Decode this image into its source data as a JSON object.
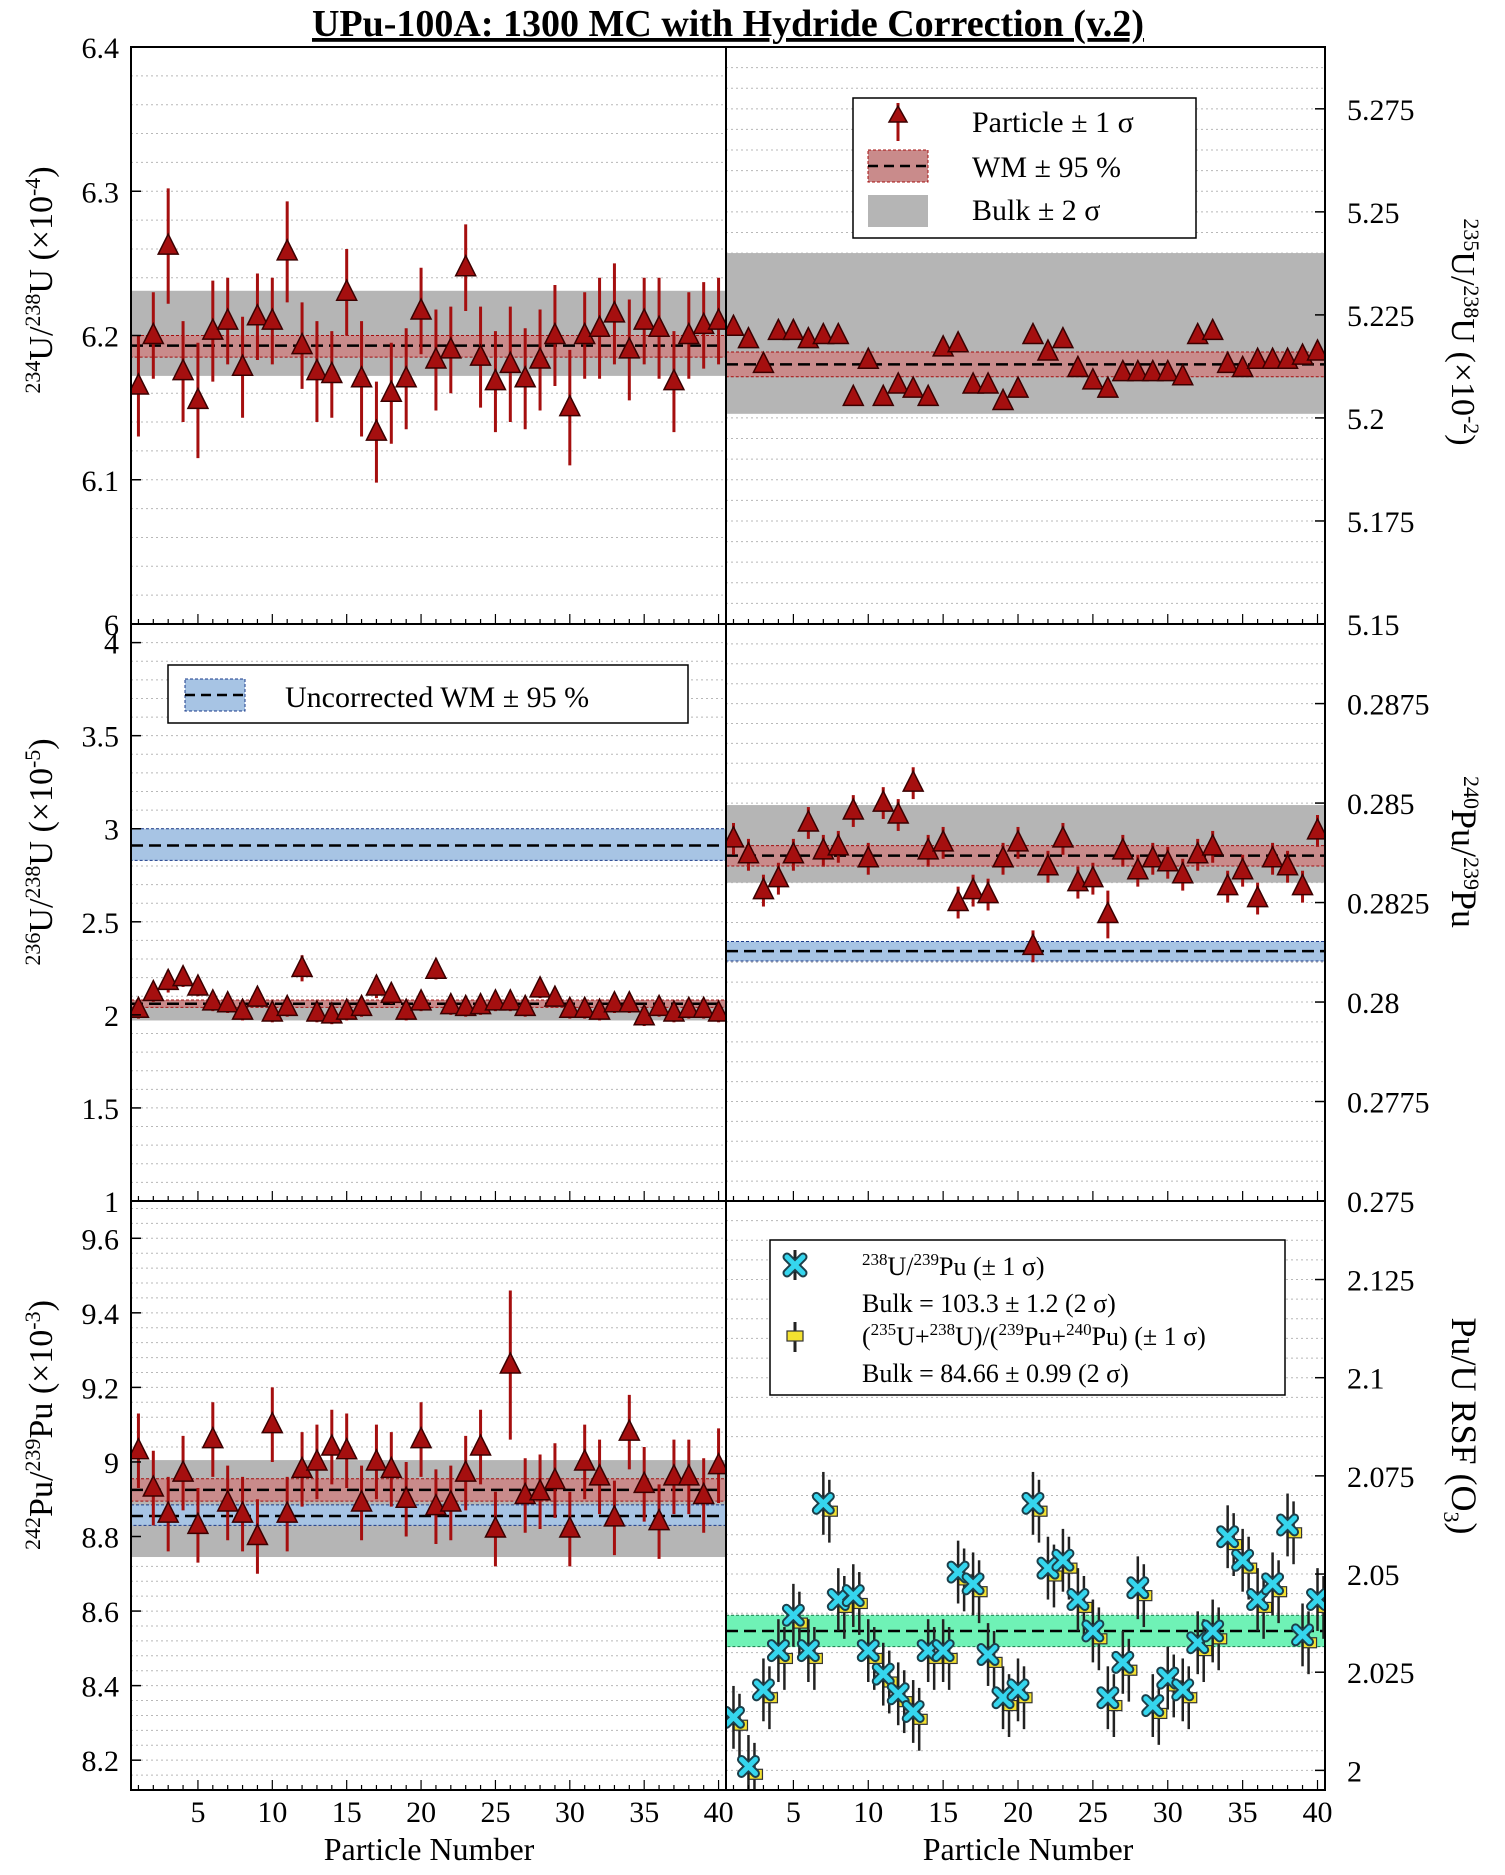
{
  "title": "UPu-100A: 1300 MC with Hydride Correction (v.2)",
  "xlabel": "Particle Number",
  "colors": {
    "marker_fill": "#a50f0f",
    "marker_edge": "#3a0000",
    "wm_band": "#c98b8b",
    "bulk_band": "#b5b5b5",
    "uncorr_band": "#a7c4e4",
    "rsf_band": "#6ff2b6",
    "cyan_marker": "#35d6ee",
    "yellow_marker": "#f4e230"
  },
  "legends": {
    "top": [
      "Particle ± 1 σ",
      "WM ± 95 %",
      "Bulk ± 2 σ"
    ],
    "uncorrected": "Uncorrected WM ± 95 %",
    "rsf": {
      "s1_label": "238U/239Pu (± 1 σ)",
      "s1_bulk": "Bulk = 103.3 ± 1.2 (2 σ)",
      "s2_label": "(235U+238U)/(239Pu+240Pu) (± 1 σ)",
      "s2_bulk": "Bulk = 84.66 ± 0.99 (2 σ)"
    }
  },
  "chart_data": [
    {
      "id": "u234",
      "type": "scatter",
      "ylabel": "234U/238U (×10-4)",
      "ylim": [
        6.0,
        6.4
      ],
      "yticks": [
        "6",
        "6.1",
        "6.2",
        "6.3",
        "6.4"
      ],
      "tick_values": [
        6.0,
        6.1,
        6.2,
        6.3,
        6.4
      ],
      "xlim": [
        0.5,
        40.5
      ],
      "xticks": [
        5,
        10,
        15,
        20,
        25,
        30,
        35,
        40
      ],
      "wm": {
        "value": 6.193,
        "low": 6.185,
        "high": 6.2
      },
      "bulk": {
        "low": 6.172,
        "high": 6.231
      },
      "x": [
        1,
        2,
        3,
        4,
        5,
        6,
        7,
        8,
        9,
        10,
        11,
        12,
        13,
        14,
        15,
        16,
        17,
        18,
        19,
        20,
        21,
        22,
        23,
        24,
        25,
        26,
        27,
        28,
        29,
        30,
        31,
        32,
        33,
        34,
        35,
        36,
        37,
        38,
        39,
        40
      ],
      "y": [
        6.165,
        6.2,
        6.262,
        6.175,
        6.155,
        6.203,
        6.21,
        6.178,
        6.213,
        6.21,
        6.258,
        6.193,
        6.175,
        6.173,
        6.23,
        6.17,
        6.133,
        6.16,
        6.17,
        6.217,
        6.183,
        6.19,
        6.247,
        6.185,
        6.168,
        6.18,
        6.17,
        6.183,
        6.2,
        6.15,
        6.2,
        6.205,
        6.215,
        6.19,
        6.21,
        6.205,
        6.168,
        6.2,
        6.207,
        6.21
      ],
      "err": [
        0.035,
        0.03,
        0.04,
        0.035,
        0.04,
        0.035,
        0.03,
        0.035,
        0.03,
        0.03,
        0.035,
        0.03,
        0.035,
        0.03,
        0.03,
        0.04,
        0.035,
        0.035,
        0.035,
        0.03,
        0.035,
        0.03,
        0.03,
        0.035,
        0.035,
        0.04,
        0.035,
        0.035,
        0.035,
        0.04,
        0.03,
        0.035,
        0.035,
        0.035,
        0.03,
        0.035,
        0.035,
        0.03,
        0.03,
        0.03
      ]
    },
    {
      "id": "u235",
      "type": "scatter",
      "ylabel": "235U/238U (×10-2)",
      "ylim": [
        5.15,
        5.29
      ],
      "yticks": [
        "5.15",
        "5.175",
        "5.2",
        "5.225",
        "5.25",
        "5.275"
      ],
      "tick_values": [
        5.15,
        5.175,
        5.2,
        5.225,
        5.25,
        5.275
      ],
      "xlim": [
        0.5,
        40.5
      ],
      "xticks": [
        5,
        10,
        15,
        20,
        25,
        30,
        35,
        40
      ],
      "wm": {
        "value": 5.213,
        "low": 5.21,
        "high": 5.216
      },
      "bulk": {
        "low": 5.201,
        "high": 5.24
      },
      "x": [
        1,
        2,
        3,
        4,
        5,
        6,
        7,
        8,
        9,
        10,
        11,
        12,
        13,
        14,
        15,
        16,
        17,
        18,
        19,
        20,
        21,
        22,
        23,
        24,
        25,
        26,
        27,
        28,
        29,
        30,
        31,
        32,
        33,
        34,
        35,
        36,
        37,
        38,
        39,
        40
      ],
      "y": [
        5.222,
        5.219,
        5.213,
        5.221,
        5.221,
        5.219,
        5.22,
        5.22,
        5.205,
        5.214,
        5.205,
        5.208,
        5.207,
        5.205,
        5.217,
        5.218,
        5.208,
        5.208,
        5.204,
        5.207,
        5.22,
        5.216,
        5.219,
        5.212,
        5.209,
        5.207,
        5.211,
        5.211,
        5.211,
        5.211,
        5.21,
        5.22,
        5.221,
        5.213,
        5.212,
        5.214,
        5.214,
        5.214,
        5.215,
        5.216
      ],
      "err": [
        0.002,
        0.002,
        0.002,
        0.002,
        0.002,
        0.002,
        0.002,
        0.002,
        0.002,
        0.002,
        0.002,
        0.002,
        0.002,
        0.002,
        0.002,
        0.002,
        0.002,
        0.002,
        0.002,
        0.002,
        0.002,
        0.002,
        0.002,
        0.002,
        0.002,
        0.002,
        0.002,
        0.002,
        0.002,
        0.002,
        0.002,
        0.002,
        0.002,
        0.002,
        0.002,
        0.002,
        0.002,
        0.002,
        0.002,
        0.002
      ]
    },
    {
      "id": "u236",
      "type": "scatter",
      "ylabel": "236U/238U (×10-5)",
      "ylim": [
        1.0,
        4.1
      ],
      "yticks": [
        "1",
        "1.5",
        "2",
        "2.5",
        "3",
        "3.5",
        "4"
      ],
      "tick_values": [
        1,
        1.5,
        2,
        2.5,
        3,
        3.5,
        4
      ],
      "xlim": [
        0.5,
        40.5
      ],
      "xticks": [
        5,
        10,
        15,
        20,
        25,
        30,
        35,
        40
      ],
      "wm": {
        "value": 2.06,
        "low": 2.04,
        "high": 2.08
      },
      "bulk": {
        "low": 1.97,
        "high": 2.06
      },
      "uncorrected": {
        "value": 2.91,
        "low": 2.83,
        "high": 3.0
      },
      "x": [
        1,
        2,
        3,
        4,
        5,
        6,
        7,
        8,
        9,
        10,
        11,
        12,
        13,
        14,
        15,
        16,
        17,
        18,
        19,
        20,
        21,
        22,
        23,
        24,
        25,
        26,
        27,
        28,
        29,
        30,
        31,
        32,
        33,
        34,
        35,
        36,
        37,
        38,
        39,
        40
      ],
      "y": [
        2.03,
        2.12,
        2.18,
        2.2,
        2.15,
        2.07,
        2.06,
        2.02,
        2.09,
        2.01,
        2.04,
        2.25,
        2.01,
        2.0,
        2.02,
        2.04,
        2.15,
        2.11,
        2.02,
        2.07,
        2.24,
        2.05,
        2.04,
        2.05,
        2.07,
        2.07,
        2.04,
        2.14,
        2.09,
        2.03,
        2.03,
        2.02,
        2.06,
        2.06,
        1.99,
        2.04,
        2.01,
        2.03,
        2.03,
        2.01
      ],
      "err": [
        0.05,
        0.05,
        0.06,
        0.05,
        0.05,
        0.05,
        0.05,
        0.05,
        0.05,
        0.05,
        0.05,
        0.07,
        0.05,
        0.05,
        0.05,
        0.05,
        0.06,
        0.05,
        0.05,
        0.05,
        0.05,
        0.05,
        0.05,
        0.05,
        0.05,
        0.05,
        0.05,
        0.05,
        0.05,
        0.05,
        0.05,
        0.05,
        0.05,
        0.05,
        0.05,
        0.05,
        0.05,
        0.05,
        0.05,
        0.05
      ]
    },
    {
      "id": "pu240",
      "type": "scatter",
      "ylabel": "240Pu/239Pu",
      "ylim": [
        0.275,
        0.2895
      ],
      "yticks": [
        "0.275",
        "0.2775",
        "0.28",
        "0.2825",
        "0.285",
        "0.2875"
      ],
      "tick_values": [
        0.275,
        0.2775,
        0.28,
        0.2825,
        0.285,
        0.2875
      ],
      "xlim": [
        0.5,
        40.5
      ],
      "xticks": [
        5,
        10,
        15,
        20,
        25,
        30,
        35,
        40
      ],
      "wm": {
        "value": 0.28368,
        "low": 0.28342,
        "high": 0.28393
      },
      "bulk": {
        "low": 0.283,
        "high": 0.28495
      },
      "uncorrected": {
        "value": 0.28128,
        "low": 0.28103,
        "high": 0.28152
      },
      "x": [
        1,
        2,
        3,
        4,
        5,
        6,
        7,
        8,
        9,
        10,
        11,
        12,
        13,
        14,
        15,
        16,
        17,
        18,
        19,
        20,
        21,
        22,
        23,
        24,
        25,
        26,
        27,
        28,
        29,
        30,
        31,
        32,
        33,
        34,
        35,
        36,
        37,
        38,
        39,
        40
      ],
      "y": [
        0.2841,
        0.2837,
        0.2828,
        0.2831,
        0.2837,
        0.2845,
        0.2838,
        0.2839,
        0.2848,
        0.2836,
        0.285,
        0.2847,
        0.2855,
        0.2838,
        0.284,
        0.2825,
        0.2828,
        0.2827,
        0.2836,
        0.284,
        0.2814,
        0.2834,
        0.2841,
        0.283,
        0.2831,
        0.2822,
        0.2838,
        0.2833,
        0.2836,
        0.2835,
        0.2832,
        0.2837,
        0.2839,
        0.2829,
        0.2833,
        0.2826,
        0.2836,
        0.2834,
        0.2829,
        0.2843
      ],
      "err": [
        0.0004,
        0.0004,
        0.0004,
        0.0004,
        0.0004,
        0.0004,
        0.0004,
        0.0004,
        0.0004,
        0.0004,
        0.0004,
        0.0004,
        0.0004,
        0.0004,
        0.0004,
        0.0004,
        0.0004,
        0.0004,
        0.0004,
        0.0004,
        0.0004,
        0.0004,
        0.0004,
        0.0004,
        0.0004,
        0.0006,
        0.0004,
        0.0004,
        0.0004,
        0.0004,
        0.0004,
        0.0004,
        0.0004,
        0.0004,
        0.0004,
        0.0004,
        0.0004,
        0.0004,
        0.0004,
        0.0004
      ]
    },
    {
      "id": "pu242",
      "type": "scatter",
      "ylabel": "242Pu/239Pu (×10-3)",
      "ylim": [
        8.12,
        9.7
      ],
      "yticks": [
        "8.2",
        "8.4",
        "8.6",
        "8.8",
        "9",
        "9.2",
        "9.4",
        "9.6"
      ],
      "tick_values": [
        8.2,
        8.4,
        8.6,
        8.8,
        9.0,
        9.2,
        9.4,
        9.6
      ],
      "xlim": [
        0.5,
        40.5
      ],
      "xticks": [
        5,
        10,
        15,
        20,
        25,
        30,
        35,
        40
      ],
      "wm": {
        "value": 8.925,
        "low": 8.895,
        "high": 8.955
      },
      "bulk": {
        "low": 8.745,
        "high": 9.005
      },
      "uncorrected": {
        "value": 8.855,
        "low": 8.83,
        "high": 8.885
      },
      "x": [
        1,
        2,
        3,
        4,
        5,
        6,
        7,
        8,
        9,
        10,
        11,
        12,
        13,
        14,
        15,
        16,
        17,
        18,
        19,
        20,
        21,
        22,
        23,
        24,
        25,
        26,
        27,
        28,
        29,
        30,
        31,
        32,
        33,
        34,
        35,
        36,
        37,
        38,
        39,
        40
      ],
      "y": [
        9.03,
        8.93,
        8.86,
        8.97,
        8.83,
        9.06,
        8.89,
        8.86,
        8.8,
        9.1,
        8.86,
        8.98,
        9.0,
        9.04,
        9.03,
        8.89,
        9.0,
        8.98,
        8.9,
        9.06,
        8.88,
        8.89,
        8.97,
        9.04,
        8.82,
        9.26,
        8.91,
        8.92,
        8.95,
        8.82,
        9.0,
        8.96,
        8.85,
        9.08,
        8.94,
        8.84,
        8.96,
        8.96,
        8.91,
        8.99
      ],
      "err": [
        0.1,
        0.1,
        0.1,
        0.1,
        0.1,
        0.1,
        0.1,
        0.1,
        0.1,
        0.1,
        0.1,
        0.1,
        0.1,
        0.1,
        0.1,
        0.1,
        0.1,
        0.1,
        0.1,
        0.1,
        0.1,
        0.1,
        0.1,
        0.1,
        0.1,
        0.2,
        0.1,
        0.1,
        0.1,
        0.1,
        0.1,
        0.1,
        0.1,
        0.1,
        0.1,
        0.1,
        0.1,
        0.1,
        0.1,
        0.1
      ]
    },
    {
      "id": "rsf",
      "type": "scatter",
      "ylabel": "Pu/U RSF (O3)",
      "ylim": [
        1.995,
        2.145
      ],
      "yticks": [
        "2",
        "2.025",
        "2.05",
        "2.075",
        "2.1",
        "2.125"
      ],
      "tick_values": [
        2.0,
        2.025,
        2.05,
        2.075,
        2.1,
        2.125
      ],
      "xlim": [
        0.5,
        40.5
      ],
      "xticks": [
        5,
        10,
        15,
        20,
        25,
        30,
        35,
        40
      ],
      "wm": {
        "value": 2.0355,
        "low": 2.0315,
        "high": 2.0395
      },
      "series": [
        {
          "name": "238U/239Pu (± 1 σ)",
          "x": [
            1,
            2,
            3,
            4,
            5,
            6,
            7,
            8,
            9,
            10,
            11,
            12,
            13,
            14,
            15,
            16,
            17,
            18,
            19,
            20,
            21,
            22,
            23,
            24,
            25,
            26,
            27,
            28,
            29,
            30,
            31,
            32,
            33,
            34,
            35,
            36,
            37,
            38,
            39,
            40
          ],
          "y": [
            2.0135,
            2.001,
            2.0205,
            2.0305,
            2.0395,
            2.0305,
            2.068,
            2.0435,
            2.0445,
            2.0305,
            2.0245,
            2.0195,
            2.015,
            2.0305,
            2.0305,
            2.0505,
            2.0475,
            2.0295,
            2.0185,
            2.0205,
            2.068,
            2.0515,
            2.0535,
            2.0435,
            2.0355,
            2.0185,
            2.0275,
            2.0465,
            2.0165,
            2.0235,
            2.0205,
            2.0325,
            2.0355,
            2.0595,
            2.0535,
            2.0435,
            2.0475,
            2.0625,
            2.0345,
            2.0435
          ],
          "err": [
            0.008,
            0.008,
            0.008,
            0.008,
            0.008,
            0.008,
            0.008,
            0.008,
            0.008,
            0.008,
            0.008,
            0.008,
            0.008,
            0.008,
            0.008,
            0.008,
            0.008,
            0.008,
            0.008,
            0.008,
            0.008,
            0.008,
            0.008,
            0.008,
            0.008,
            0.008,
            0.008,
            0.008,
            0.008,
            0.008,
            0.008,
            0.008,
            0.008,
            0.008,
            0.008,
            0.008,
            0.008,
            0.008,
            0.008,
            0.008
          ]
        },
        {
          "name": "(235U+238U)/(239Pu+240Pu) (± 1 σ)",
          "x": [
            1,
            2,
            3,
            4,
            5,
            6,
            7,
            8,
            9,
            10,
            11,
            12,
            13,
            14,
            15,
            16,
            17,
            18,
            19,
            20,
            21,
            22,
            23,
            24,
            25,
            26,
            27,
            28,
            29,
            30,
            31,
            32,
            33,
            34,
            35,
            36,
            37,
            38,
            39,
            40
          ],
          "y": [
            2.0115,
            1.999,
            2.0185,
            2.0285,
            2.0375,
            2.0285,
            2.066,
            2.0415,
            2.0425,
            2.0285,
            2.0225,
            2.0175,
            2.013,
            2.0285,
            2.0285,
            2.0485,
            2.0455,
            2.0275,
            2.0165,
            2.0185,
            2.066,
            2.0495,
            2.0515,
            2.0415,
            2.0335,
            2.0165,
            2.0255,
            2.0445,
            2.0145,
            2.0215,
            2.0185,
            2.0305,
            2.0335,
            2.0575,
            2.0515,
            2.0415,
            2.0455,
            2.0605,
            2.0325,
            2.0415
          ],
          "err": [
            0.008,
            0.008,
            0.008,
            0.008,
            0.008,
            0.008,
            0.008,
            0.008,
            0.008,
            0.008,
            0.008,
            0.008,
            0.008,
            0.008,
            0.008,
            0.008,
            0.008,
            0.008,
            0.008,
            0.008,
            0.008,
            0.008,
            0.008,
            0.008,
            0.008,
            0.008,
            0.008,
            0.008,
            0.008,
            0.008,
            0.008,
            0.008,
            0.008,
            0.008,
            0.008,
            0.008,
            0.008,
            0.008,
            0.008,
            0.008
          ]
        }
      ]
    }
  ]
}
